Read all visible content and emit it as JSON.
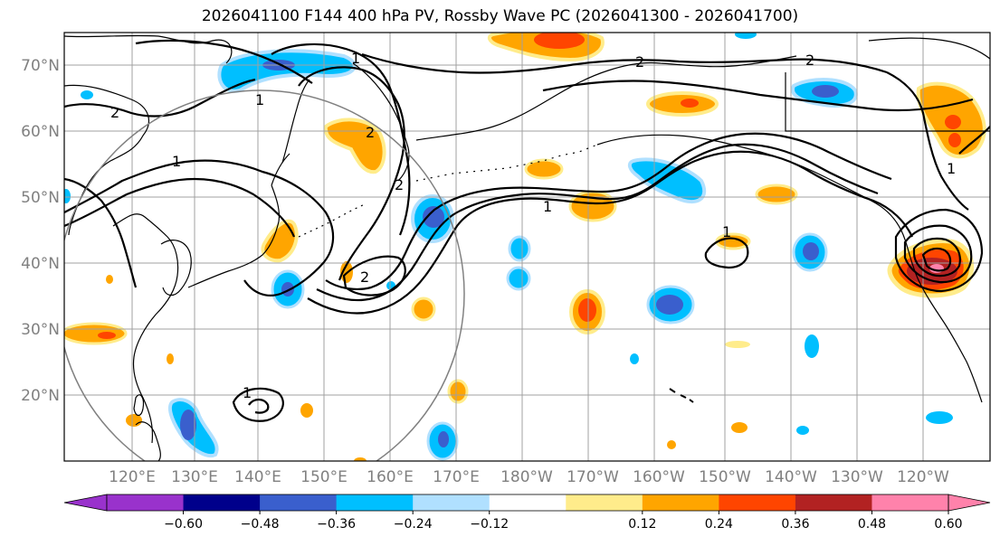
{
  "title": "2026041100 F144 400 hPa PV, Rossby Wave PC (2026041300 - 2026041700)",
  "latitude_labels": [
    "70°N",
    "60°N",
    "50°N",
    "40°N",
    "30°N",
    "20°N"
  ],
  "longitude_labels": [
    "120°E",
    "130°E",
    "140°E",
    "150°E",
    "160°E",
    "170°E",
    "180°W",
    "170°W",
    "160°W",
    "150°W",
    "140°W",
    "130°W",
    "120°W"
  ],
  "contour_labels": [
    "1",
    "2",
    "1",
    "1",
    "2",
    "2",
    "1",
    "2",
    "2",
    "1",
    "1",
    "1",
    "2"
  ],
  "colorbar": {
    "tick_labels": [
      "−0.60",
      "−0.48",
      "−0.36",
      "−0.24",
      "−0.12",
      "0.12",
      "0.24",
      "0.36",
      "0.48",
      "0.60"
    ],
    "colors": [
      "#9932cc",
      "#00008b",
      "#3a5fcd",
      "#00bfff",
      "#b0e0ff",
      "#ffffff",
      "#ffec8b",
      "#ffa500",
      "#ff4500",
      "#b22222",
      "#ff82ab"
    ]
  },
  "colors": {
    "negative_strong": "#3a5fcd",
    "negative_mid": "#00bfff",
    "negative_weak": "#b0e0ff",
    "positive_weak": "#ffec8b",
    "positive_mid": "#ffa500",
    "positive_strong": "#ff4500",
    "positive_max": "#b22222",
    "grid": "#a0a0a0",
    "contour": "#000000",
    "coast": "#000000"
  }
}
